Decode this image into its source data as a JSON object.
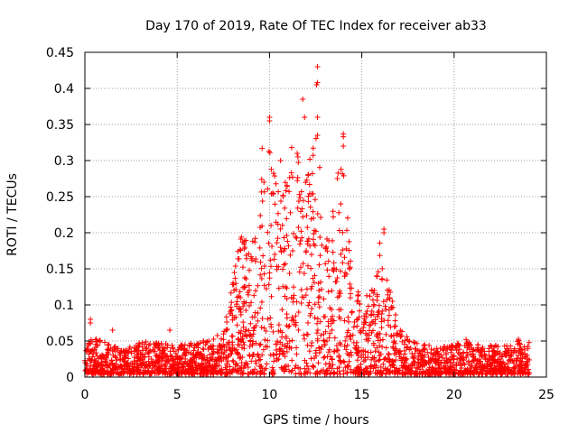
{
  "chart_data": {
    "type": "scatter",
    "title": "Day 170 of 2019, Rate Of TEC Index for receiver ab33",
    "xlabel": "GPS time / hours",
    "ylabel": "ROTI / TECUs",
    "xlim": [
      0,
      25
    ],
    "ylim": [
      0,
      0.45
    ],
    "xticks": [
      0,
      5,
      10,
      15,
      20,
      25
    ],
    "yticks": [
      0,
      0.05,
      0.1,
      0.15,
      0.2,
      0.25,
      0.3,
      0.35,
      0.4,
      0.45
    ],
    "grid": true,
    "marker": "+",
    "color": "#ff0000",
    "series": [
      {
        "name": "ROTI",
        "envelope": [
          [
            0,
            0.045
          ],
          [
            0.5,
            0.05
          ],
          [
            1,
            0.045
          ],
          [
            1.5,
            0.04
          ],
          [
            2,
            0.035
          ],
          [
            3,
            0.045
          ],
          [
            4,
            0.045
          ],
          [
            5,
            0.04
          ],
          [
            6,
            0.045
          ],
          [
            7,
            0.05
          ],
          [
            7.5,
            0.06
          ],
          [
            8,
            0.13
          ],
          [
            8.5,
            0.2
          ],
          [
            9,
            0.17
          ],
          [
            9.5,
            0.26
          ],
          [
            10,
            0.33
          ],
          [
            10.5,
            0.25
          ],
          [
            11,
            0.3
          ],
          [
            11.5,
            0.32
          ],
          [
            12,
            0.27
          ],
          [
            12.5,
            0.38
          ],
          [
            13,
            0.17
          ],
          [
            13.5,
            0.25
          ],
          [
            14,
            0.32
          ],
          [
            14.5,
            0.14
          ],
          [
            15,
            0.1
          ],
          [
            15.5,
            0.12
          ],
          [
            16,
            0.19
          ],
          [
            16.5,
            0.12
          ],
          [
            17,
            0.07
          ],
          [
            17.5,
            0.05
          ],
          [
            18,
            0.045
          ],
          [
            19,
            0.04
          ],
          [
            20,
            0.04
          ],
          [
            20.5,
            0.05
          ],
          [
            21,
            0.045
          ],
          [
            22,
            0.04
          ],
          [
            23,
            0.04
          ],
          [
            23.5,
            0.05
          ],
          [
            24,
            0.045
          ]
        ],
        "notable_points": [
          {
            "x": 0.3,
            "y": 0.08
          },
          {
            "x": 0.3,
            "y": 0.075
          },
          {
            "x": 1.5,
            "y": 0.065
          },
          {
            "x": 4.6,
            "y": 0.065
          },
          {
            "x": 10.0,
            "y": 0.36
          },
          {
            "x": 10.0,
            "y": 0.355
          },
          {
            "x": 9.6,
            "y": 0.317
          },
          {
            "x": 11.8,
            "y": 0.385
          },
          {
            "x": 11.9,
            "y": 0.36
          },
          {
            "x": 12.6,
            "y": 0.43
          },
          {
            "x": 12.6,
            "y": 0.408
          },
          {
            "x": 12.55,
            "y": 0.405
          },
          {
            "x": 12.6,
            "y": 0.36
          },
          {
            "x": 12.6,
            "y": 0.335
          },
          {
            "x": 14.0,
            "y": 0.337
          },
          {
            "x": 14.0,
            "y": 0.333
          },
          {
            "x": 14.0,
            "y": 0.32
          },
          {
            "x": 16.2,
            "y": 0.205
          },
          {
            "x": 16.2,
            "y": 0.2
          },
          {
            "x": 11.2,
            "y": 0.318
          },
          {
            "x": 11.5,
            "y": 0.31
          },
          {
            "x": 9.7,
            "y": 0.27
          },
          {
            "x": 10.6,
            "y": 0.3
          }
        ]
      }
    ]
  }
}
